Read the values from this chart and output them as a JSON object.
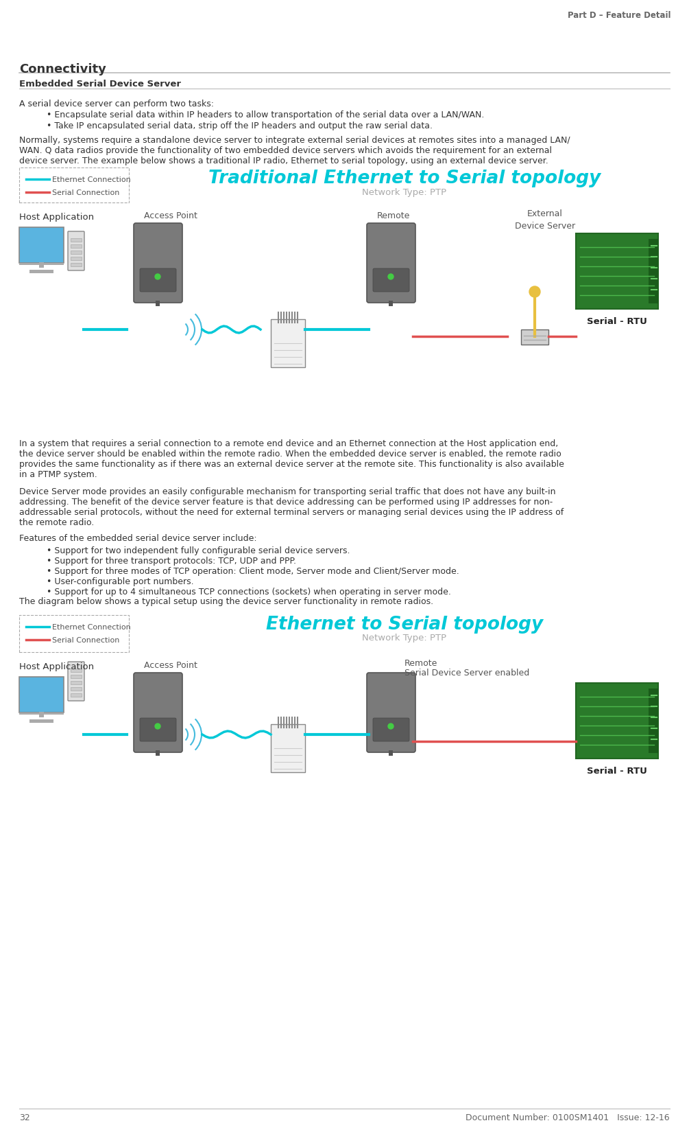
{
  "page_num": "32",
  "doc_number": "Document Number: 0100SM1401   Issue: 12-16",
  "header_right": "Part D – Feature Detail",
  "section_title": "Connectivity",
  "subsection_title": "Embedded Serial Device Server",
  "para1": "A serial device server can perform two tasks:",
  "bullet1": "• Encapsulate serial data within IP headers to allow transportation of the serial data over a LAN/WAN.",
  "bullet2": "• Take IP encapsulated serial data, strip off the IP headers and output the raw serial data.",
  "para2_l1": "Normally, systems require a standalone device server to integrate external serial devices at remotes sites into a managed LAN/",
  "para2_l2": "WAN. Q data radios provide the functionality of two embedded device servers which avoids the requirement for an external",
  "para2_l3": "device server. The example below shows a traditional IP radio, Ethernet to serial topology, using an external device server.",
  "d1_title": "Traditional Ethernet to Serial topology",
  "d1_network": "Network Type: PTP",
  "d1_eth_legend": "Ethernet Connection",
  "d1_ser_legend": "Serial Connection",
  "d1_host": "Host Application",
  "d1_ap": "Access Point",
  "d1_remote": "Remote",
  "d1_ext": "External\nDevice Server",
  "d1_rtu": "Serial - RTU",
  "para3_l1": "In a system that requires a serial connection to a remote end device and an Ethernet connection at the Host application end,",
  "para3_l2": "the device server should be enabled within the remote radio. When the embedded device server is enabled, the remote radio",
  "para3_l3": "provides the same functionality as if there was an external device server at the remote site. This functionality is also available",
  "para3_l4": "in a PTMP system.",
  "para4_l1": "Device Server mode provides an easily configurable mechanism for transporting serial traffic that does not have any built-in",
  "para4_l2": "addressing. The benefit of the device server feature is that device addressing can be performed using IP addresses for non-",
  "para4_l3": "addressable serial protocols, without the need for external terminal servers or managing serial devices using the IP address of",
  "para4_l4": "the remote radio.",
  "para5": "Features of the embedded serial device server include:",
  "feat1": "• Support for two independent fully configurable serial device servers.",
  "feat2": "• Support for three transport protocols: TCP, UDP and PPP.",
  "feat3": "• Support for three modes of TCP operation: Client mode, Server mode and Client/Server mode.",
  "feat4": "• User-configurable port numbers.",
  "feat5": "• Support for up to 4 simultaneous TCP connections (sockets) when operating in server mode.",
  "para6": "The diagram below shows a typical setup using the device server functionality in remote radios.",
  "d2_title": "Ethernet to Serial topology",
  "d2_network": "Network Type: PTP",
  "d2_eth_legend": "Ethernet Connection",
  "d2_ser_legend": "Serial Connection",
  "d2_host": "Host Application",
  "d2_ap": "Access Point",
  "d2_remote_l1": "Remote",
  "d2_remote_l2": "Serial Device Server enabled",
  "d2_rtu": "Serial - RTU",
  "bg": "#ffffff",
  "tc": "#333333",
  "gray": "#666666",
  "lgray": "#aaaaaa",
  "cyan": "#00c8d7",
  "red": "#e05050",
  "dashed_border": "#aaaaaa"
}
